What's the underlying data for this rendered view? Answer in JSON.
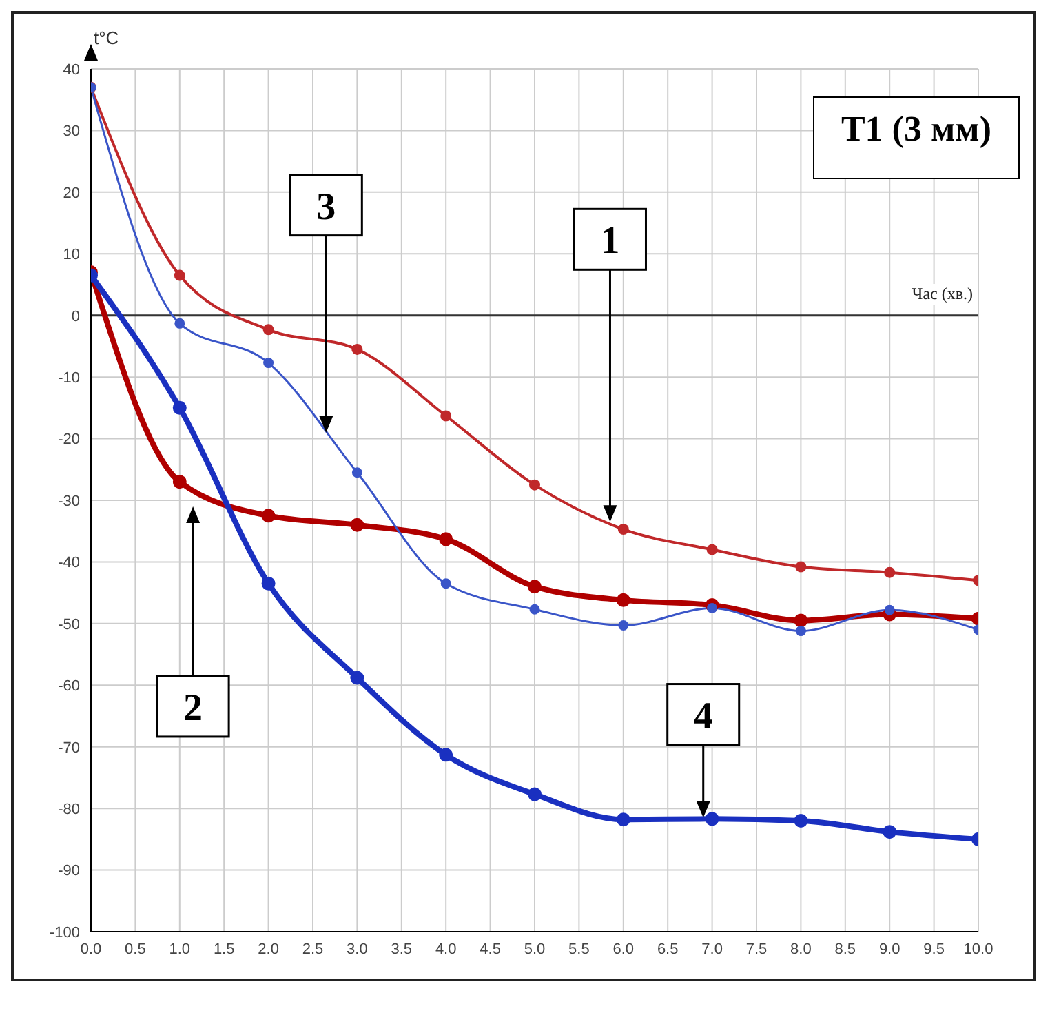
{
  "chart_data": {
    "type": "line",
    "title": "T1 (3 мм)",
    "xlabel": "Час (хв.)",
    "ylabel": "t°C",
    "x": [
      0,
      1,
      2,
      3,
      4,
      5,
      6,
      7,
      8,
      9,
      10
    ],
    "series": [
      {
        "color": "#c0282a",
        "values": [
          37,
          6.5,
          -2.3,
          -5.5,
          -16.3,
          -27.5,
          -34.7,
          -38,
          -40.8,
          -41.7,
          -43
        ]
      },
      {
        "color": "#b00000",
        "values": [
          7,
          -27,
          -32.5,
          -34,
          -36.3,
          -44,
          -46.2,
          -47,
          -49.5,
          -48.5,
          -49.2
        ]
      },
      {
        "color": "#3a55c8",
        "values": [
          37,
          -1.3,
          -7.7,
          -25.5,
          -43.5,
          -47.7,
          -50.3,
          -47.5,
          -51.2,
          -47.8,
          -51
        ]
      },
      {
        "color": "#1a30c0",
        "values": [
          6.5,
          -15,
          -43.5,
          -58.8,
          -71.3,
          -77.7,
          -81.8,
          -81.7,
          -82,
          -83.8,
          -85
        ]
      }
    ],
    "annotations": [
      "1",
      "2",
      "3",
      "4"
    ],
    "ref_lines": [
      {
        "axis": "y",
        "value": 0,
        "color": "#333333"
      }
    ],
    "xlim": [
      0,
      10
    ],
    "ylim": [
      -100,
      40
    ],
    "xticks": [
      {
        "value": 0,
        "label": "0.0"
      },
      {
        "value": 0.5,
        "label": "0.5"
      },
      {
        "value": 1,
        "label": "1.0"
      },
      {
        "value": 1.5,
        "label": "1.5"
      },
      {
        "value": 2,
        "label": "2.0"
      },
      {
        "value": 2.5,
        "label": "2.5"
      },
      {
        "value": 3,
        "label": "3.0"
      },
      {
        "value": 3.5,
        "label": "3.5"
      },
      {
        "value": 4,
        "label": "4.0"
      },
      {
        "value": 4.5,
        "label": "4.5"
      },
      {
        "value": 5,
        "label": "5.0"
      },
      {
        "value": 5.5,
        "label": "5.5"
      },
      {
        "value": 6,
        "label": "6.0"
      },
      {
        "value": 6.5,
        "label": "6.5"
      },
      {
        "value": 7,
        "label": "7.0"
      },
      {
        "value": 7.5,
        "label": "7.5"
      },
      {
        "value": 8,
        "label": "8.0"
      },
      {
        "value": 8.5,
        "label": "8.5"
      },
      {
        "value": 9,
        "label": "9.0"
      },
      {
        "value": 9.5,
        "label": "9.5"
      },
      {
        "value": 10,
        "label": "10.0"
      }
    ],
    "yticks": [
      -100,
      -90,
      -80,
      -70,
      -60,
      -50,
      -40,
      -30,
      -20,
      -10,
      0,
      10,
      20,
      30,
      40
    ],
    "grid": true,
    "marker": "circle",
    "line_style": "solid",
    "legend": false
  }
}
